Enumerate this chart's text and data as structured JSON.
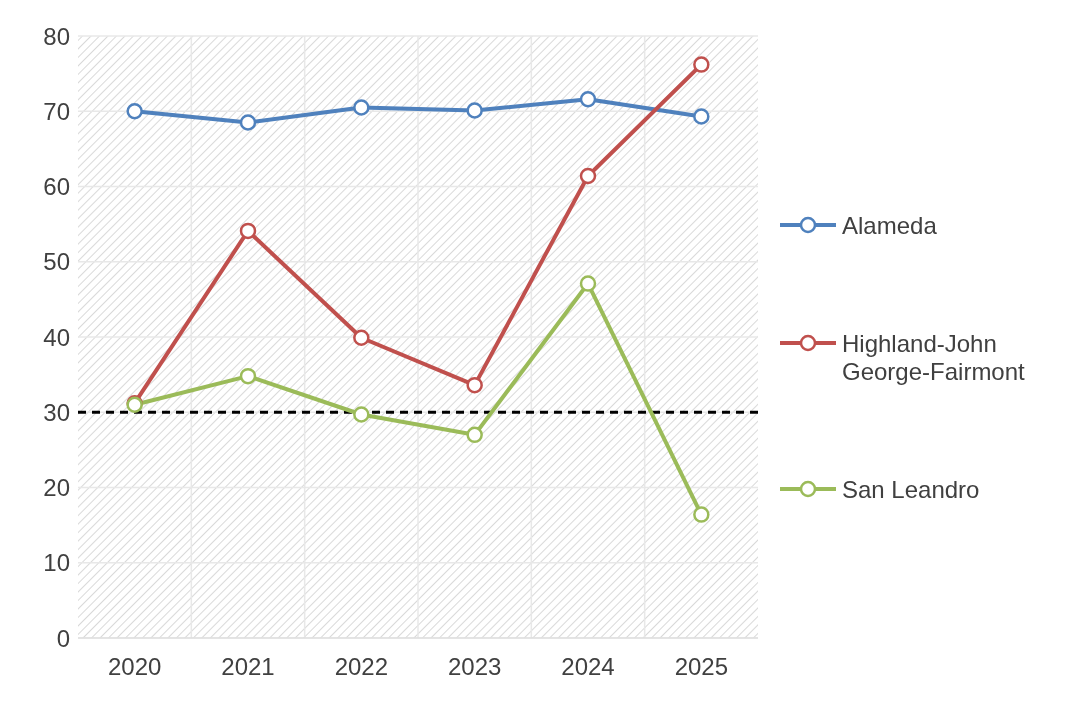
{
  "chart_data": {
    "type": "line",
    "categories": [
      "2020",
      "2021",
      "2022",
      "2023",
      "2024",
      "2025"
    ],
    "series": [
      {
        "name": "Alameda",
        "color": "#4f81bd",
        "values": [
          70.0,
          68.5,
          70.5,
          70.1,
          71.6,
          69.3
        ]
      },
      {
        "name": "Highland-John George-Fairmont",
        "color": "#c0504d",
        "values": [
          31.2,
          54.1,
          39.9,
          33.6,
          61.4,
          76.2
        ]
      },
      {
        "name": "San Leandro",
        "color": "#9bbb59",
        "values": [
          31.0,
          34.8,
          29.7,
          27.0,
          47.1,
          16.4
        ]
      }
    ],
    "ylim": [
      0,
      80
    ],
    "yticks": [
      0,
      10,
      20,
      30,
      40,
      50,
      60,
      70,
      80
    ],
    "ref_lines": [
      {
        "axis": "y",
        "value": 30,
        "color": "#000000",
        "line_style": "dashed"
      }
    ],
    "grid": true,
    "legend": "right",
    "marker": "circle",
    "line_style": "solid"
  }
}
